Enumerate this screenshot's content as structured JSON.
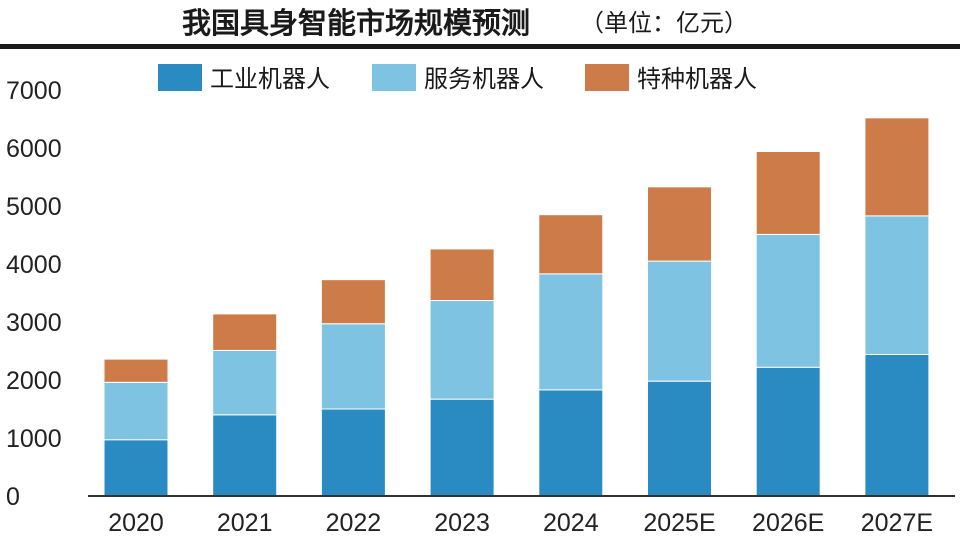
{
  "chart_data": {
    "type": "bar",
    "stacked": true,
    "title": "我国具身智能市场规模预测",
    "unit_note": "（单位：亿元）",
    "categories": [
      "2020",
      "2021",
      "2022",
      "2023",
      "2024",
      "2025E",
      "2026E",
      "2027E"
    ],
    "series": [
      {
        "name": "工业机器人",
        "color": "#2a8bc3",
        "values": [
          970,
          1400,
          1500,
          1670,
          1830,
          1980,
          2220,
          2440
        ]
      },
      {
        "name": "服务机器人",
        "color": "#7ec3e1",
        "values": [
          990,
          1110,
          1470,
          1700,
          2000,
          2070,
          2290,
          2390
        ]
      },
      {
        "name": "特种机器人",
        "color": "#cd7b48",
        "values": [
          400,
          630,
          760,
          890,
          1020,
          1280,
          1430,
          1690
        ]
      }
    ],
    "ylim": [
      0,
      7000
    ],
    "yticks": [
      "0",
      "1000",
      "2000",
      "3000",
      "4000",
      "5000",
      "6000",
      "7000"
    ],
    "legend_position": "top-center",
    "grid": false
  }
}
